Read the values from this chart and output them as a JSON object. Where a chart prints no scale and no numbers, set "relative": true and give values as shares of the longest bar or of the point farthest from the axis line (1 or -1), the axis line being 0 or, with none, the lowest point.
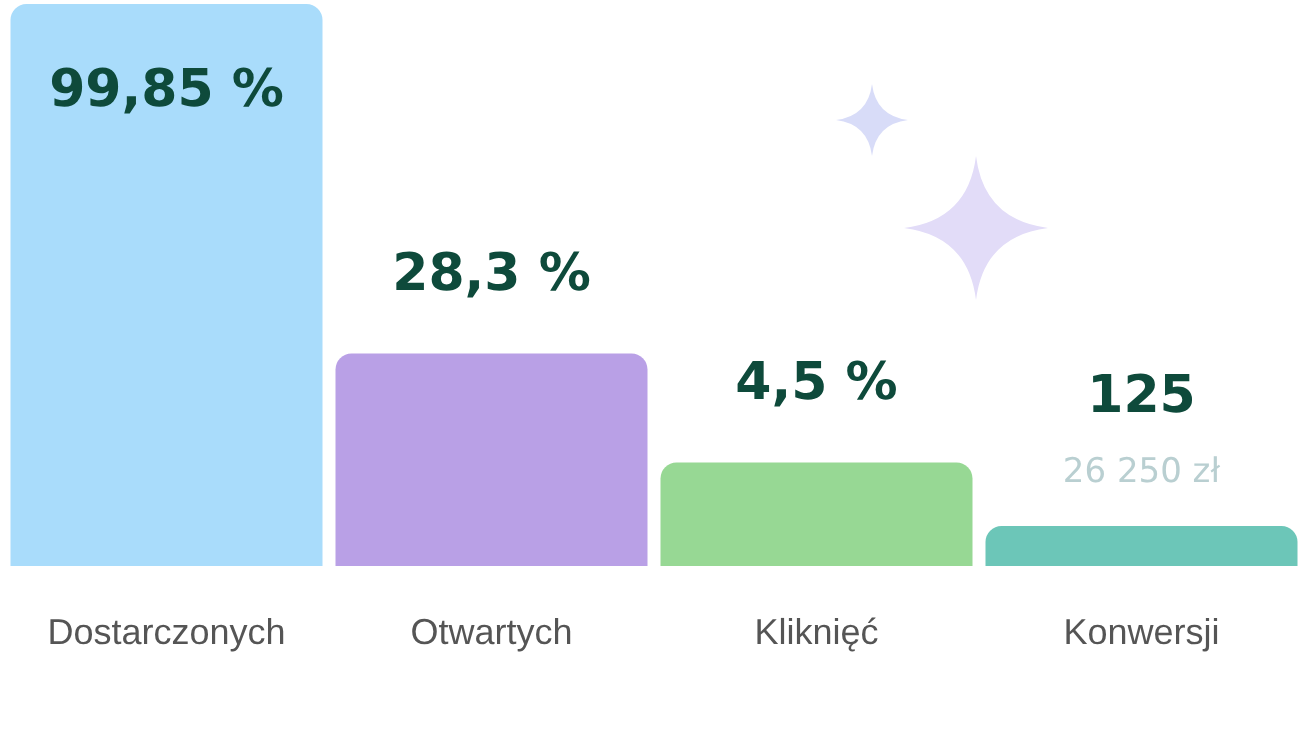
{
  "chart_data": {
    "type": "bar",
    "relative": true,
    "categories": [
      "Dostarczonych",
      "Otwartych",
      "Kliknięć",
      "Konwersji"
    ],
    "values": [
      1,
      0.378,
      0.184,
      0.071
    ],
    "colors": [
      "#a9dcfb",
      "#b9a0e6",
      "#97d894",
      "#6cc6b8"
    ],
    "annotations": [
      {
        "text": "99,85 %",
        "x": "Dostarczonych",
        "y": 1
      },
      {
        "text": "28,3 %",
        "x": "Otwartych",
        "y": 0.378
      },
      {
        "text": "4,5 %",
        "x": "Kliknięć",
        "y": 0.184
      },
      {
        "text": "125",
        "x": "Konwersji",
        "y": 0.071
      },
      {
        "text": "26 250 zł",
        "x": "Konwersji",
        "y": 0.071
      }
    ]
  }
}
